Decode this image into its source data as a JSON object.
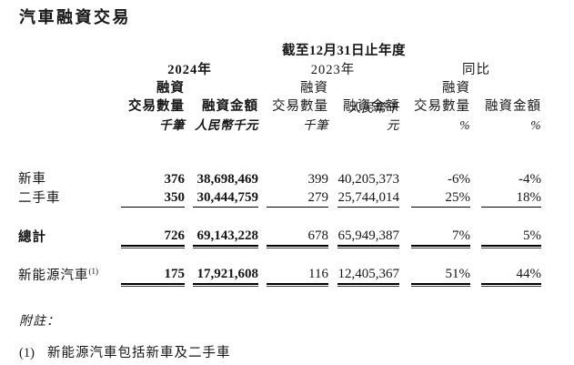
{
  "title": "汽車融資交易",
  "colors": {
    "background": "#ffffff",
    "text": "#161616",
    "rule": "#000000"
  },
  "table": {
    "period_header": "截至12月31日止年度",
    "groups": {
      "y2024": {
        "label": "2024年",
        "fin": "融資",
        "count": "交易數量",
        "amount": "融資金額",
        "count_unit": "千筆",
        "amount_unit": "人民幣千元"
      },
      "y2023": {
        "label": "2023年",
        "fin": "融資",
        "count": "交易數量",
        "amount": "融資金額",
        "count_unit": "千筆",
        "amount_unit": "人民幣千元"
      },
      "yoy": {
        "label": "同比",
        "fin": "融資",
        "count": "交易數量",
        "amount": "融資金額",
        "count_unit": "%",
        "amount_unit": "%"
      }
    },
    "rows": [
      {
        "label": "新車",
        "values": [
          "376",
          "38,698,469",
          "399",
          "40,205,373",
          "-6%",
          "-4%"
        ]
      },
      {
        "label": "二手車",
        "values": [
          "350",
          "30,444,759",
          "279",
          "25,744,014",
          "25%",
          "18%"
        ]
      },
      {
        "label": "總計",
        "values": [
          "726",
          "69,143,228",
          "678",
          "65,949,387",
          "7%",
          "5%"
        ]
      },
      {
        "label": "新能源汽車",
        "label_sup": "(1)",
        "values": [
          "175",
          "17,921,608",
          "116",
          "12,405,367",
          "51%",
          "44%"
        ]
      }
    ]
  },
  "notes": {
    "heading": "附註：",
    "items": [
      {
        "marker": "(1)",
        "text": "新能源汽車包括新車及二手車"
      }
    ]
  }
}
